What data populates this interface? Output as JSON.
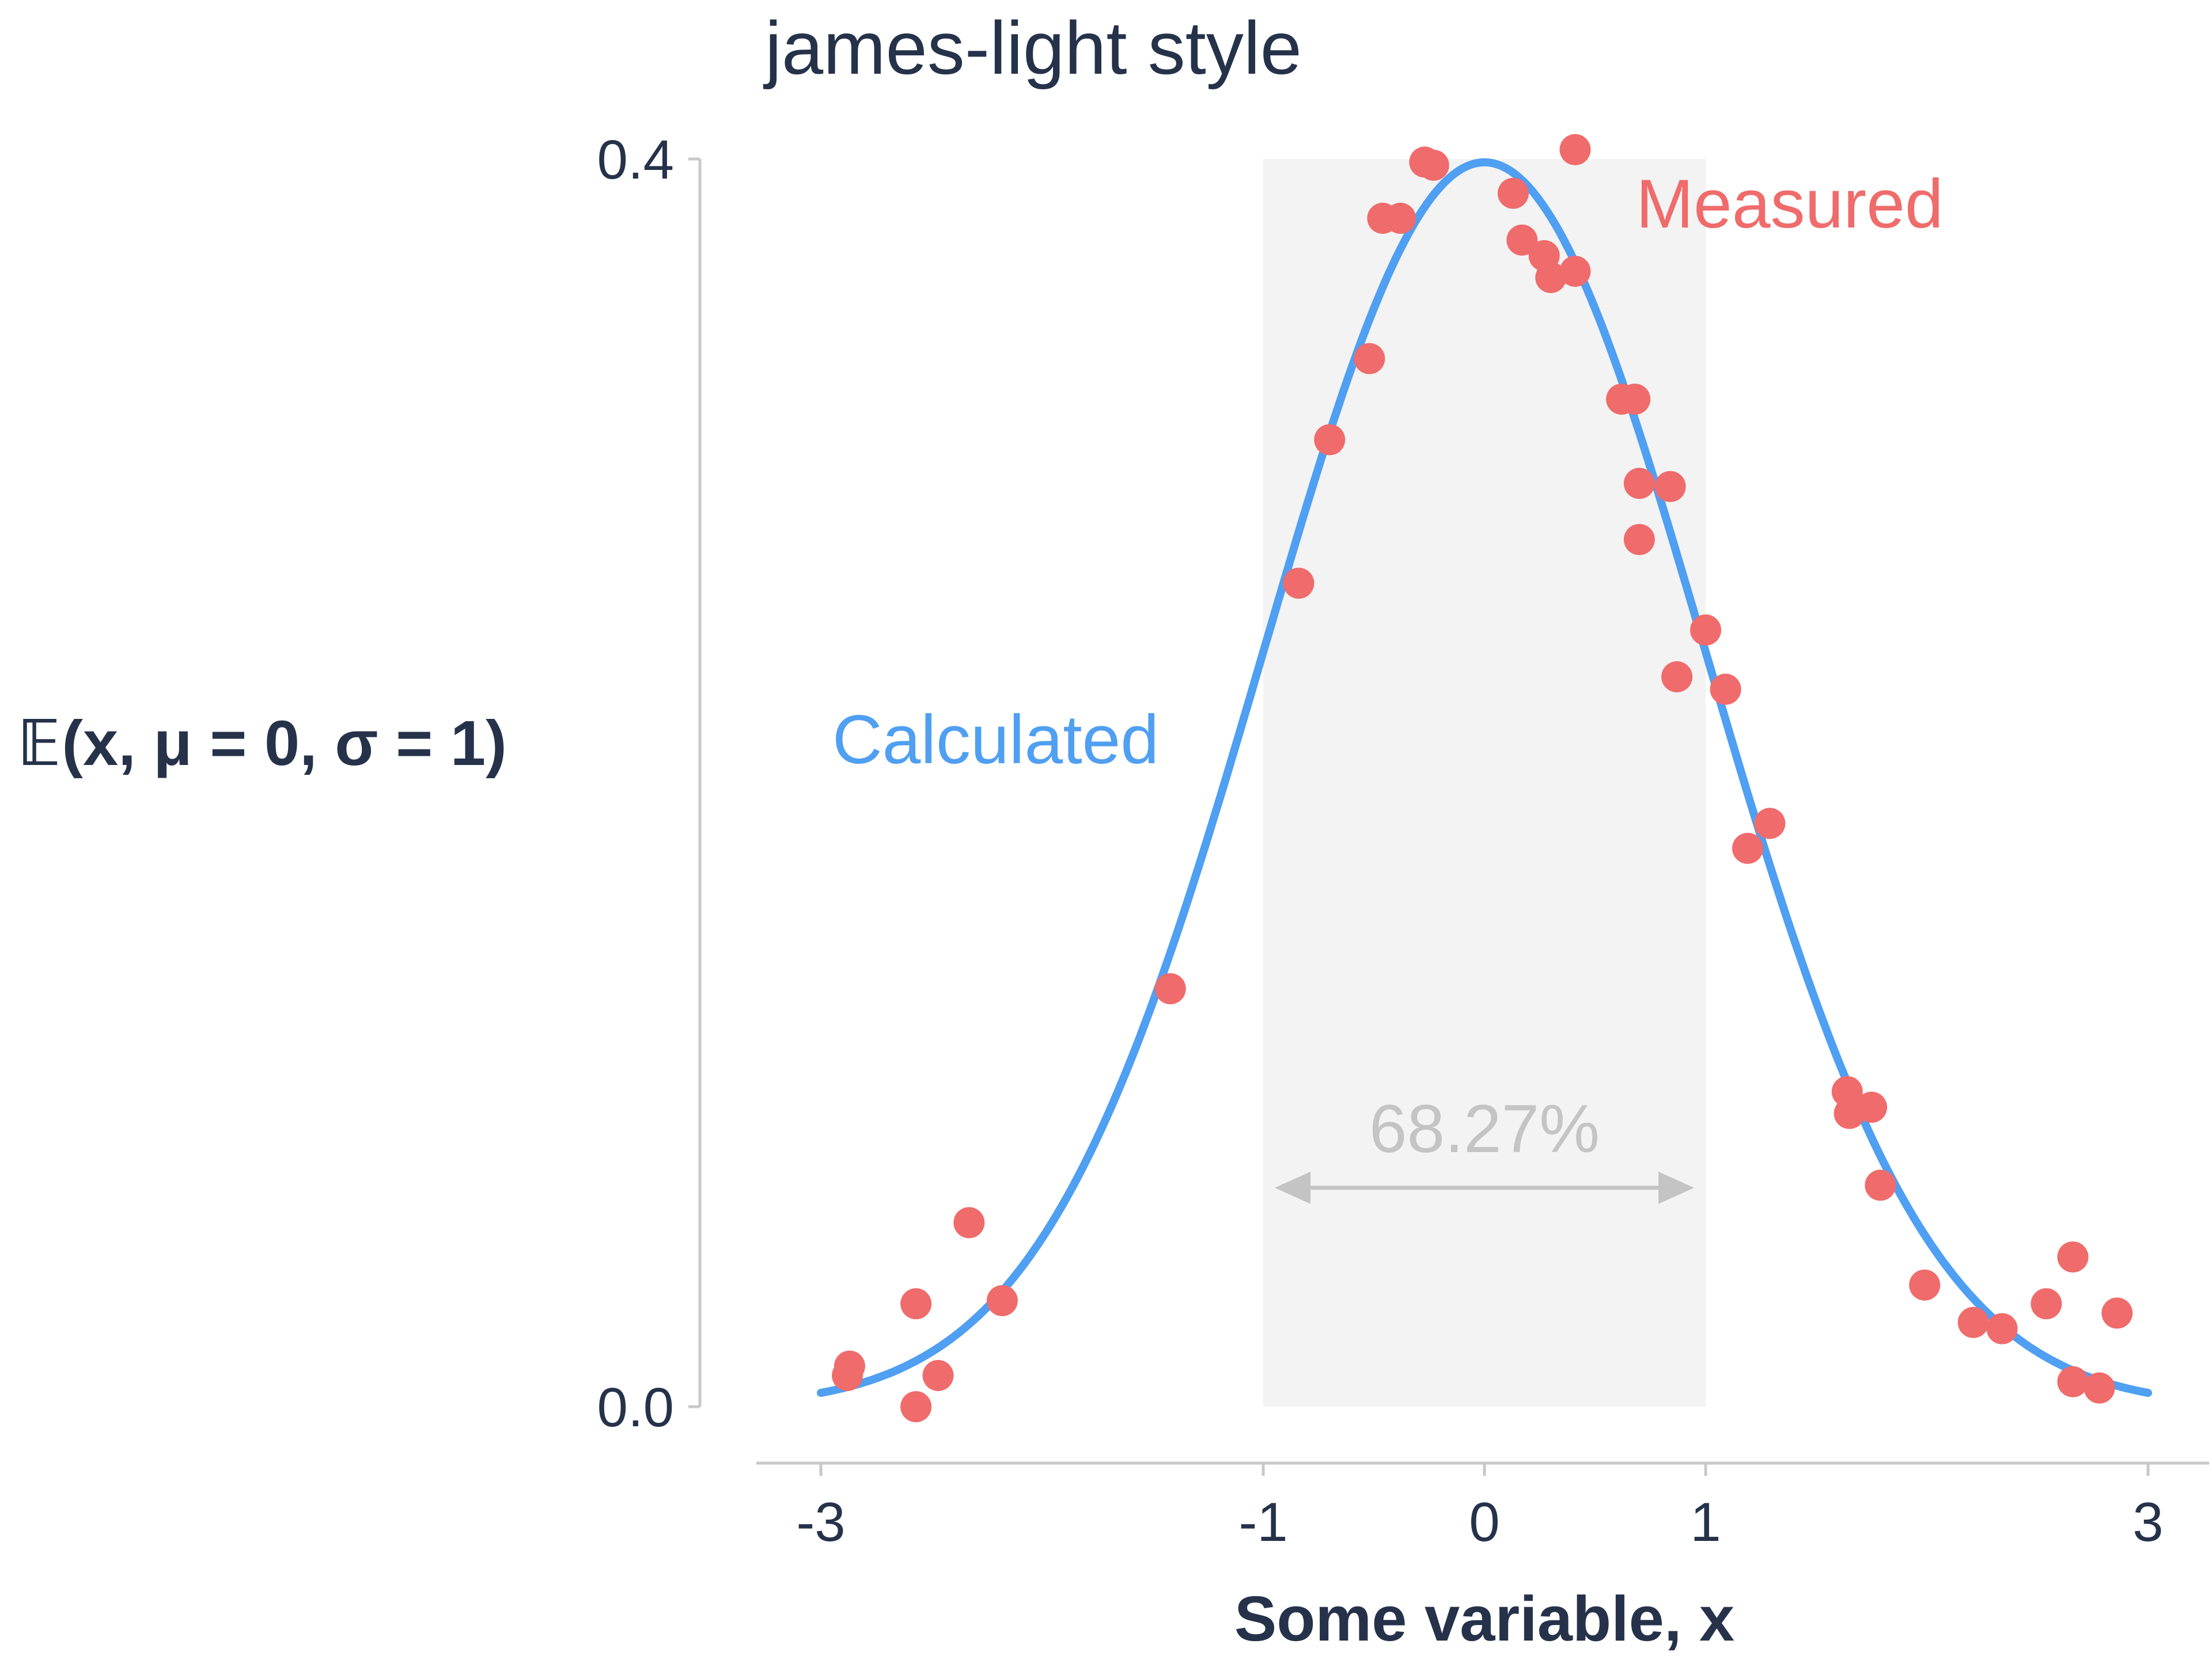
{
  "chart_data": {
    "type": "scatter",
    "title": "james-light style",
    "xlabel": "Some variable, x",
    "ylabel": "𝔼(x, μ = 0, σ = 1)",
    "xlim": [
      -3.3,
      3.3
    ],
    "ylim": [
      0.0,
      0.4
    ],
    "xticks": [
      -3,
      -1,
      0,
      1,
      3
    ],
    "yticks": [
      0.0,
      0.4
    ],
    "xtick_labels": [
      "-3",
      "-1",
      "0",
      "1",
      "3"
    ],
    "ytick_labels": [
      "0.0",
      "0.4"
    ],
    "grid": false,
    "colors": {
      "text": "#25324a",
      "curve": "#4f9ff2",
      "points": "#f06b6b",
      "annotation": "#c4c4c4",
      "shade": "#f3f3f3",
      "axis": "#c8c8c8"
    },
    "series": [
      {
        "name": "Calculated",
        "kind": "line",
        "function": "normal_pdf",
        "mu": 0,
        "sigma": 1,
        "x_range": [
          -3.0,
          3.0
        ]
      },
      {
        "name": "Measured",
        "kind": "scatter",
        "points": [
          [
            -2.88,
            0.01
          ],
          [
            -2.87,
            0.013
          ],
          [
            -2.57,
            0.033
          ],
          [
            -2.57,
            0.0
          ],
          [
            -2.47,
            0.01
          ],
          [
            -2.33,
            0.059
          ],
          [
            -2.18,
            0.034
          ],
          [
            -1.42,
            0.134
          ],
          [
            -0.84,
            0.264
          ],
          [
            -0.7,
            0.31
          ],
          [
            -0.52,
            0.336
          ],
          [
            -0.46,
            0.381
          ],
          [
            -0.38,
            0.381
          ],
          [
            -0.27,
            0.399
          ],
          [
            -0.23,
            0.398
          ],
          [
            0.13,
            0.389
          ],
          [
            0.17,
            0.374
          ],
          [
            0.27,
            0.369
          ],
          [
            0.3,
            0.362
          ],
          [
            0.41,
            0.364
          ],
          [
            0.41,
            0.403
          ],
          [
            0.62,
            0.323
          ],
          [
            0.68,
            0.323
          ],
          [
            0.7,
            0.296
          ],
          [
            0.7,
            0.278
          ],
          [
            0.84,
            0.295
          ],
          [
            0.87,
            0.234
          ],
          [
            1.0,
            0.249
          ],
          [
            1.09,
            0.23
          ],
          [
            1.19,
            0.179
          ],
          [
            1.29,
            0.187
          ],
          [
            1.64,
            0.101
          ],
          [
            1.65,
            0.094
          ],
          [
            1.75,
            0.096
          ],
          [
            1.79,
            0.071
          ],
          [
            1.99,
            0.039
          ],
          [
            2.21,
            0.027
          ],
          [
            2.34,
            0.025
          ],
          [
            2.54,
            0.033
          ],
          [
            2.66,
            0.048
          ],
          [
            2.66,
            0.008
          ],
          [
            2.78,
            0.006
          ],
          [
            2.86,
            0.03
          ]
        ]
      }
    ],
    "shaded_region": {
      "x": [
        -1,
        1
      ],
      "label": "68.27%"
    },
    "annotations": [
      {
        "text": "Calculated",
        "color": "curve"
      },
      {
        "text": "Measured",
        "color": "points"
      }
    ]
  }
}
